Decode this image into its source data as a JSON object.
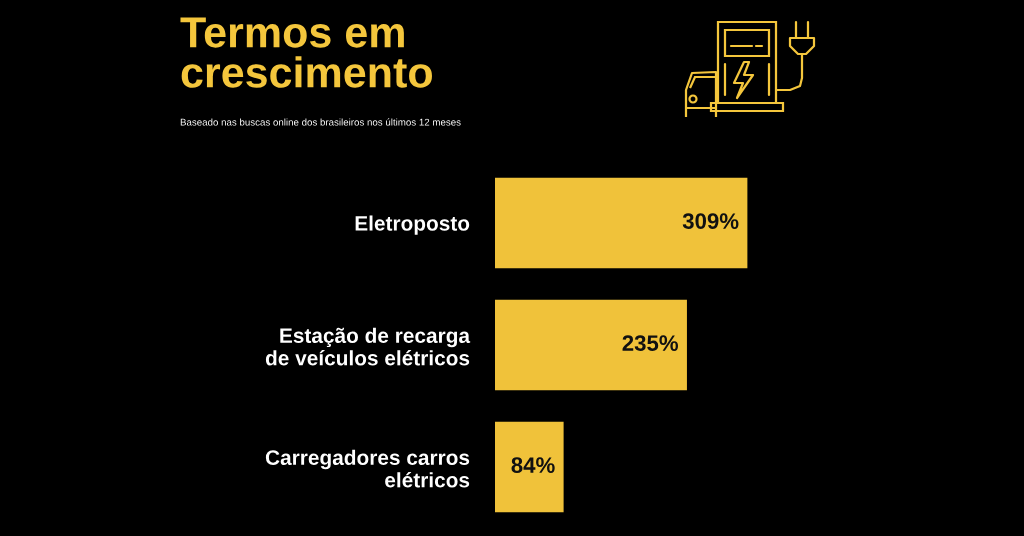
{
  "chart_data": {
    "type": "bar",
    "orientation": "horizontal",
    "title": "Termos em\ncrescimento",
    "subtitle": "Baseado nas buscas online dos brasileiros nos últimos 12 meses",
    "categories": [
      "Eletroposto",
      "Estação de recarga\nde veículos elétricos",
      "Carregadores carros\nelétricos"
    ],
    "values": [
      309,
      235,
      84
    ],
    "value_labels": [
      "309%",
      "235%",
      "84%"
    ],
    "color": "#f0c23a",
    "tick_labels": "y"
  }
}
